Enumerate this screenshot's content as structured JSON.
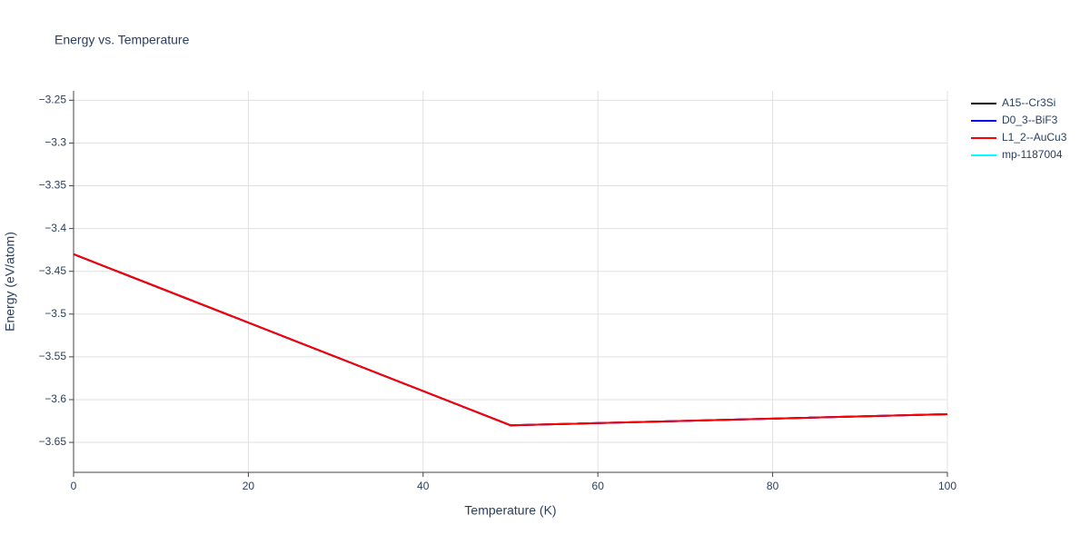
{
  "chart_data": {
    "type": "line",
    "title": "Energy vs. Temperature",
    "x_label": "Temperature (K)",
    "y_label": "Energy (eV/atom)",
    "x": [
      0,
      50,
      100
    ],
    "series": [
      {
        "name": "A15--Cr3Si",
        "color": "#000000",
        "values": [
          -3.43,
          -3.63,
          -3.617
        ]
      },
      {
        "name": "D0_3--BiF3",
        "color": "#0000ff",
        "values": [
          -3.43,
          -3.63,
          -3.617
        ]
      },
      {
        "name": "L1_2--AuCu3",
        "color": "#ff0000",
        "values": [
          -3.43,
          -3.63,
          -3.617
        ]
      },
      {
        "name": "mp-1187004",
        "color": "#00ffff",
        "values": [
          null,
          null,
          null
        ]
      }
    ],
    "xlim": [
      0,
      100
    ],
    "xticks": [
      0,
      20,
      40,
      60,
      80,
      100
    ],
    "ylim": [
      -3.685,
      -3.239
    ],
    "yticks": [
      {
        "value": -3.65,
        "label": "−3.65"
      },
      {
        "value": -3.6,
        "label": "−3.6"
      },
      {
        "value": -3.55,
        "label": "−3.55"
      },
      {
        "value": -3.5,
        "label": "−3.5"
      },
      {
        "value": -3.45,
        "label": "−3.45"
      },
      {
        "value": -3.4,
        "label": "−3.4"
      },
      {
        "value": -3.35,
        "label": "−3.35"
      },
      {
        "value": -3.3,
        "label": "−3.3"
      },
      {
        "value": -3.25,
        "label": "−3.25"
      }
    ],
    "grid": true,
    "legend": "right"
  }
}
